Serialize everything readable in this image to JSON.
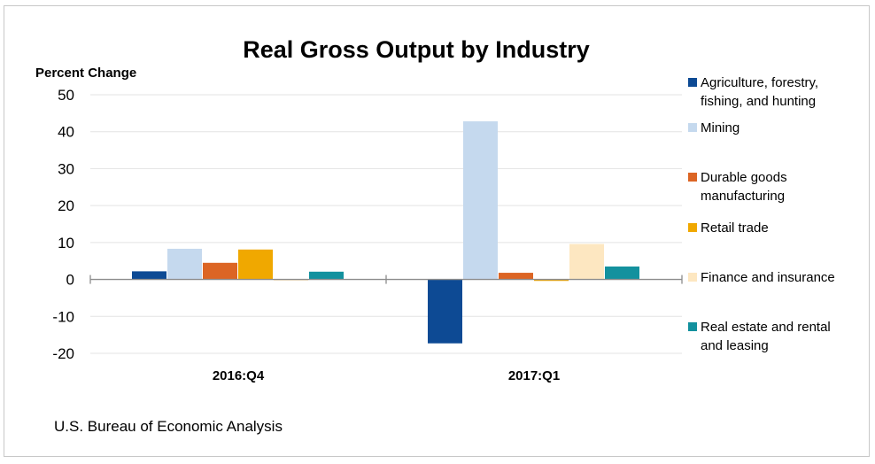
{
  "chart_data": {
    "type": "bar",
    "title": "Real Gross Output by Industry",
    "ylabel": "Percent Change",
    "xlabel": "",
    "categories": [
      "2016:Q4",
      "2017:Q1"
    ],
    "ylim": [
      -20,
      50
    ],
    "yticks": [
      50,
      40,
      30,
      20,
      10,
      0,
      -10,
      -20
    ],
    "grid": true,
    "legend_position": "right",
    "series": [
      {
        "name": "Agriculture, forestry, fishing, and hunting",
        "legend_lines": [
          "Agriculture, forestry,",
          "fishing, and hunting"
        ],
        "color": "#0d4a94",
        "values": [
          2.2,
          -17.3
        ]
      },
      {
        "name": "Mining",
        "legend_lines": [
          "Mining"
        ],
        "color": "#c5d9ee",
        "values": [
          8.3,
          42.8
        ]
      },
      {
        "name": "Durable goods manufacturing",
        "legend_lines": [
          "Durable goods",
          "manufacturing"
        ],
        "color": "#dc6524",
        "values": [
          4.5,
          1.8
        ]
      },
      {
        "name": "Retail trade",
        "legend_lines": [
          "Retail trade"
        ],
        "color": "#f0a800",
        "values": [
          8.1,
          -0.4
        ]
      },
      {
        "name": "Finance and insurance",
        "legend_lines": [
          "Finance and insurance"
        ],
        "color": "#fde7c1",
        "values": [
          -0.3,
          9.6
        ]
      },
      {
        "name": "Real estate and rental and leasing",
        "legend_lines": [
          "Real estate and rental",
          "and leasing"
        ],
        "color": "#13919e",
        "values": [
          2.1,
          3.5
        ]
      }
    ]
  },
  "source": "U.S. Bureau of Economic Analysis"
}
